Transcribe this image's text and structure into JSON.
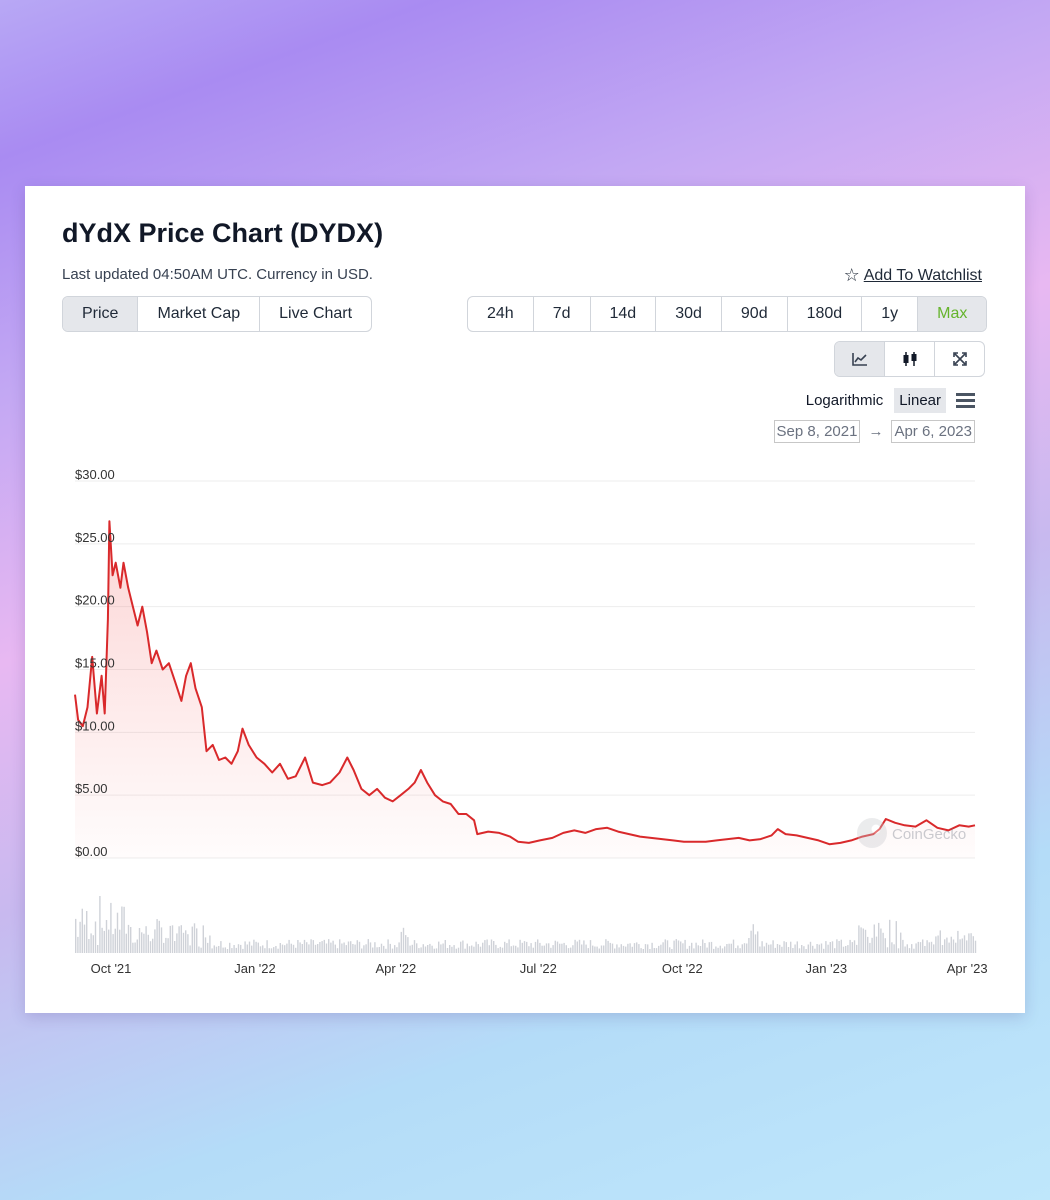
{
  "page": {
    "title": "dYdX Price Chart (DYDX)",
    "subtitle": "Last updated 04:50AM UTC. Currency in USD.",
    "watchlist_label": "Add To Watchlist",
    "type_tabs": [
      "Price",
      "Market Cap",
      "Live Chart"
    ],
    "active_type": "Price",
    "ranges": [
      "24h",
      "7d",
      "14d",
      "30d",
      "90d",
      "180d",
      "1y",
      "Max"
    ],
    "active_range": "Max",
    "tools": [
      "line-chart-icon",
      "candlestick-icon",
      "fullscreen-icon"
    ],
    "scale_options": [
      "Logarithmic",
      "Linear"
    ],
    "active_scale": "Linear",
    "date_from": "Sep 8, 2021",
    "date_to": "Apr 6, 2023",
    "date_arrow": "→",
    "watermark": "CoinGecko"
  },
  "colors": {
    "line": "#d9292b",
    "active_range_text": "#65b42c",
    "volume": "#cfd2d8",
    "grid": "#ededed"
  },
  "chart_data": {
    "type": "area",
    "title": "dYdX Price Chart (DYDX)",
    "y_ticks": [
      "$0.00",
      "$5.00",
      "$10.00",
      "$15.00",
      "$20.00",
      "$25.00",
      "$30.00"
    ],
    "x_ticks": [
      "Oct '21",
      "Jan '22",
      "Apr '22",
      "Jul '22",
      "Oct '22",
      "Jan '23",
      "Apr '23"
    ],
    "ylim": [
      0,
      30
    ],
    "xlim": [
      "2021-09-08",
      "2023-04-06"
    ],
    "grid": true,
    "series": [
      {
        "unit": "USD",
        "points": [
          [
            "2021-09-08",
            13.0
          ],
          [
            "2021-09-10",
            11.0
          ],
          [
            "2021-09-13",
            10.5
          ],
          [
            "2021-09-16",
            12.0
          ],
          [
            "2021-09-19",
            16.0
          ],
          [
            "2021-09-22",
            11.5
          ],
          [
            "2021-09-25",
            14.5
          ],
          [
            "2021-09-27",
            11.5
          ],
          [
            "2021-09-29",
            19.0
          ],
          [
            "2021-09-30",
            26.8
          ],
          [
            "2021-10-02",
            22.5
          ],
          [
            "2021-10-04",
            23.5
          ],
          [
            "2021-10-07",
            21.5
          ],
          [
            "2021-10-09",
            23.5
          ],
          [
            "2021-10-12",
            21.5
          ],
          [
            "2021-10-15",
            20.0
          ],
          [
            "2021-10-18",
            18.5
          ],
          [
            "2021-10-21",
            20.0
          ],
          [
            "2021-10-24",
            18.0
          ],
          [
            "2021-10-27",
            15.5
          ],
          [
            "2021-10-30",
            16.5
          ],
          [
            "2021-11-03",
            15.0
          ],
          [
            "2021-11-07",
            15.5
          ],
          [
            "2021-11-11",
            14.0
          ],
          [
            "2021-11-15",
            12.5
          ],
          [
            "2021-11-18",
            14.5
          ],
          [
            "2021-11-21",
            15.5
          ],
          [
            "2021-11-24",
            13.5
          ],
          [
            "2021-11-28",
            12.0
          ],
          [
            "2021-12-01",
            8.5
          ],
          [
            "2021-12-05",
            9.0
          ],
          [
            "2021-12-09",
            7.8
          ],
          [
            "2021-12-13",
            8.0
          ],
          [
            "2021-12-17",
            7.5
          ],
          [
            "2021-12-21",
            8.5
          ],
          [
            "2021-12-24",
            10.3
          ],
          [
            "2021-12-28",
            9.0
          ],
          [
            "2022-01-02",
            8.0
          ],
          [
            "2022-01-07",
            7.5
          ],
          [
            "2022-01-12",
            6.8
          ],
          [
            "2022-01-17",
            7.5
          ],
          [
            "2022-01-22",
            6.3
          ],
          [
            "2022-01-27",
            6.5
          ],
          [
            "2022-02-02",
            8.0
          ],
          [
            "2022-02-07",
            6.0
          ],
          [
            "2022-02-13",
            5.8
          ],
          [
            "2022-02-18",
            6.0
          ],
          [
            "2022-02-24",
            6.8
          ],
          [
            "2022-03-01",
            8.0
          ],
          [
            "2022-03-05",
            7.0
          ],
          [
            "2022-03-10",
            5.5
          ],
          [
            "2022-03-15",
            5.0
          ],
          [
            "2022-03-20",
            5.5
          ],
          [
            "2022-03-25",
            4.8
          ],
          [
            "2022-03-30",
            4.5
          ],
          [
            "2022-04-04",
            5.0
          ],
          [
            "2022-04-09",
            5.5
          ],
          [
            "2022-04-13",
            6.0
          ],
          [
            "2022-04-17",
            7.0
          ],
          [
            "2022-04-21",
            6.0
          ],
          [
            "2022-04-26",
            5.0
          ],
          [
            "2022-05-01",
            4.5
          ],
          [
            "2022-05-06",
            4.3
          ],
          [
            "2022-05-11",
            3.5
          ],
          [
            "2022-05-16",
            3.5
          ],
          [
            "2022-05-21",
            3.0
          ],
          [
            "2022-05-23",
            1.9
          ],
          [
            "2022-05-30",
            2.1
          ],
          [
            "2022-06-06",
            2.0
          ],
          [
            "2022-06-13",
            1.7
          ],
          [
            "2022-06-18",
            1.3
          ],
          [
            "2022-06-25",
            1.2
          ],
          [
            "2022-07-02",
            1.4
          ],
          [
            "2022-07-10",
            1.6
          ],
          [
            "2022-07-17",
            2.0
          ],
          [
            "2022-07-24",
            2.2
          ],
          [
            "2022-07-31",
            2.0
          ],
          [
            "2022-08-07",
            2.3
          ],
          [
            "2022-08-14",
            2.4
          ],
          [
            "2022-08-21",
            2.1
          ],
          [
            "2022-08-28",
            1.9
          ],
          [
            "2022-09-04",
            1.7
          ],
          [
            "2022-09-11",
            1.6
          ],
          [
            "2022-09-18",
            1.5
          ],
          [
            "2022-09-25",
            1.4
          ],
          [
            "2022-10-02",
            1.3
          ],
          [
            "2022-10-09",
            1.3
          ],
          [
            "2022-10-16",
            1.3
          ],
          [
            "2022-10-23",
            1.4
          ],
          [
            "2022-10-30",
            1.5
          ],
          [
            "2022-11-06",
            1.6
          ],
          [
            "2022-11-13",
            1.4
          ],
          [
            "2022-11-20",
            1.5
          ],
          [
            "2022-11-27",
            1.8
          ],
          [
            "2022-12-01",
            2.3
          ],
          [
            "2022-12-06",
            1.9
          ],
          [
            "2022-12-13",
            1.8
          ],
          [
            "2022-12-20",
            1.6
          ],
          [
            "2022-12-27",
            1.4
          ],
          [
            "2023-01-03",
            1.1
          ],
          [
            "2023-01-10",
            1.2
          ],
          [
            "2023-01-17",
            1.4
          ],
          [
            "2023-01-24",
            1.7
          ],
          [
            "2023-01-31",
            1.9
          ],
          [
            "2023-02-04",
            2.3
          ],
          [
            "2023-02-08",
            3.1
          ],
          [
            "2023-02-14",
            2.8
          ],
          [
            "2023-02-20",
            2.6
          ],
          [
            "2023-02-27",
            2.5
          ],
          [
            "2023-03-06",
            3.0
          ],
          [
            "2023-03-13",
            2.4
          ],
          [
            "2023-03-20",
            2.2
          ],
          [
            "2023-03-27",
            2.6
          ],
          [
            "2023-04-02",
            2.5
          ],
          [
            "2023-04-06",
            2.6
          ]
        ]
      }
    ]
  }
}
